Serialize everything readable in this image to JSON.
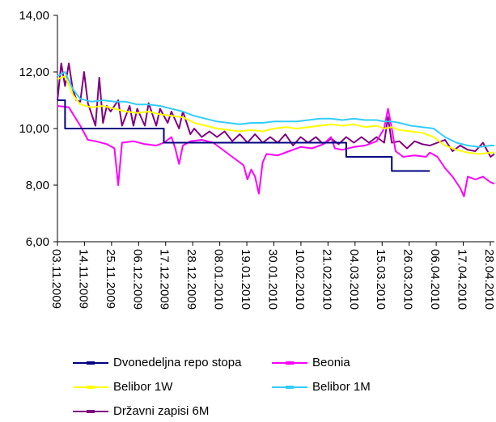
{
  "chart_data": {
    "type": "line",
    "title": "",
    "xlabel": "",
    "ylabel": "",
    "ylim": [
      6,
      14
    ],
    "yticks": [
      "6,00",
      "8,00",
      "10,00",
      "12,00",
      "14,00"
    ],
    "xticks": [
      "03.11.2009",
      "14.11.2009",
      "25.11.2009",
      "06.12.2009",
      "17.12.2009",
      "28.12.2009",
      "08.01.2010",
      "19.01.2010",
      "30.01.2010",
      "10.02.2010",
      "21.02.2010",
      "04.03.2010",
      "15.03.2010",
      "26.03.2010",
      "06.04.2010",
      "17.04.2010",
      "28.04.2010"
    ],
    "legend_position": "bottom",
    "grid": false,
    "series": [
      {
        "name": "Dvonedeljna repo stopa",
        "color": "#000080",
        "points": [
          [
            0,
            11.0
          ],
          [
            2,
            11.0
          ],
          [
            2,
            10.0
          ],
          [
            28,
            10.0
          ],
          [
            28,
            9.5
          ],
          [
            76,
            9.5
          ],
          [
            76,
            9.0
          ],
          [
            88,
            9.0
          ],
          [
            88,
            8.5
          ],
          [
            98,
            8.5
          ]
        ]
      },
      {
        "name": "Beonia",
        "color": "#ff00ff",
        "points": [
          [
            0,
            10.8
          ],
          [
            3,
            10.75
          ],
          [
            6,
            10.1
          ],
          [
            8,
            9.6
          ],
          [
            10,
            9.55
          ],
          [
            13,
            9.45
          ],
          [
            15,
            9.3
          ],
          [
            16,
            8.0
          ],
          [
            17,
            9.5
          ],
          [
            20,
            9.55
          ],
          [
            23,
            9.45
          ],
          [
            26,
            9.4
          ],
          [
            28,
            9.5
          ],
          [
            30,
            9.7
          ],
          [
            31,
            9.3
          ],
          [
            32,
            8.75
          ],
          [
            33,
            9.4
          ],
          [
            35,
            9.55
          ],
          [
            38,
            9.6
          ],
          [
            41,
            9.5
          ],
          [
            43,
            9.3
          ],
          [
            45,
            9.1
          ],
          [
            47,
            8.9
          ],
          [
            49,
            8.7
          ],
          [
            50,
            8.2
          ],
          [
            51,
            8.55
          ],
          [
            52,
            8.3
          ],
          [
            53,
            7.7
          ],
          [
            54,
            8.8
          ],
          [
            55,
            9.1
          ],
          [
            58,
            9.05
          ],
          [
            61,
            9.2
          ],
          [
            64,
            9.35
          ],
          [
            67,
            9.3
          ],
          [
            70,
            9.45
          ],
          [
            72,
            9.7
          ],
          [
            73,
            9.3
          ],
          [
            75,
            9.25
          ],
          [
            78,
            9.35
          ],
          [
            81,
            9.4
          ],
          [
            84,
            9.55
          ],
          [
            86,
            10.0
          ],
          [
            87,
            10.7
          ],
          [
            88,
            10.0
          ],
          [
            89,
            9.2
          ],
          [
            91,
            9.0
          ],
          [
            94,
            9.05
          ],
          [
            97,
            9.0
          ],
          [
            98,
            9.15
          ],
          [
            100,
            9.0
          ],
          [
            102,
            8.6
          ],
          [
            104,
            8.3
          ],
          [
            106,
            7.9
          ],
          [
            107,
            7.6
          ],
          [
            108,
            8.3
          ],
          [
            110,
            8.2
          ],
          [
            112,
            8.3
          ],
          [
            114,
            8.1
          ],
          [
            115,
            8.05
          ]
        ]
      },
      {
        "name": "Belibor 1W",
        "color": "#ffff00",
        "points": [
          [
            0,
            11.75
          ],
          [
            2,
            11.85
          ],
          [
            4,
            11.2
          ],
          [
            6,
            10.85
          ],
          [
            9,
            10.75
          ],
          [
            12,
            10.8
          ],
          [
            15,
            10.7
          ],
          [
            18,
            10.6
          ],
          [
            21,
            10.55
          ],
          [
            24,
            10.6
          ],
          [
            27,
            10.5
          ],
          [
            30,
            10.45
          ],
          [
            33,
            10.4
          ],
          [
            36,
            10.2
          ],
          [
            39,
            10.1
          ],
          [
            42,
            10.0
          ],
          [
            45,
            9.95
          ],
          [
            48,
            9.9
          ],
          [
            51,
            9.95
          ],
          [
            54,
            9.9
          ],
          [
            57,
            10.0
          ],
          [
            60,
            10.05
          ],
          [
            63,
            10.0
          ],
          [
            66,
            10.05
          ],
          [
            69,
            10.1
          ],
          [
            72,
            10.15
          ],
          [
            75,
            10.1
          ],
          [
            78,
            10.15
          ],
          [
            81,
            10.05
          ],
          [
            84,
            10.1
          ],
          [
            86,
            10.0
          ],
          [
            88,
            10.05
          ],
          [
            90,
            9.95
          ],
          [
            93,
            9.9
          ],
          [
            96,
            9.85
          ],
          [
            99,
            9.7
          ],
          [
            102,
            9.4
          ],
          [
            105,
            9.25
          ],
          [
            108,
            9.15
          ],
          [
            111,
            9.1
          ],
          [
            114,
            9.15
          ],
          [
            115,
            9.15
          ]
        ]
      },
      {
        "name": "Belibor 1M",
        "color": "#33ccff",
        "points": [
          [
            0,
            11.85
          ],
          [
            2,
            12.0
          ],
          [
            4,
            11.4
          ],
          [
            6,
            11.05
          ],
          [
            9,
            10.95
          ],
          [
            12,
            11.0
          ],
          [
            15,
            10.95
          ],
          [
            18,
            10.95
          ],
          [
            21,
            10.85
          ],
          [
            24,
            10.85
          ],
          [
            27,
            10.8
          ],
          [
            30,
            10.7
          ],
          [
            33,
            10.6
          ],
          [
            36,
            10.45
          ],
          [
            39,
            10.35
          ],
          [
            42,
            10.25
          ],
          [
            45,
            10.2
          ],
          [
            48,
            10.15
          ],
          [
            51,
            10.2
          ],
          [
            54,
            10.2
          ],
          [
            57,
            10.25
          ],
          [
            60,
            10.25
          ],
          [
            63,
            10.25
          ],
          [
            66,
            10.3
          ],
          [
            69,
            10.35
          ],
          [
            72,
            10.35
          ],
          [
            75,
            10.3
          ],
          [
            78,
            10.35
          ],
          [
            81,
            10.3
          ],
          [
            84,
            10.3
          ],
          [
            86,
            10.25
          ],
          [
            88,
            10.25
          ],
          [
            90,
            10.2
          ],
          [
            93,
            10.1
          ],
          [
            96,
            10.05
          ],
          [
            99,
            10.0
          ],
          [
            102,
            9.7
          ],
          [
            105,
            9.5
          ],
          [
            108,
            9.4
          ],
          [
            111,
            9.35
          ],
          [
            114,
            9.4
          ],
          [
            115,
            9.4
          ]
        ]
      },
      {
        "name": "Državni zapisi 6M",
        "color": "#800080",
        "points": [
          [
            0,
            11.0
          ],
          [
            1,
            12.3
          ],
          [
            2,
            11.5
          ],
          [
            3,
            12.3
          ],
          [
            4,
            11.4
          ],
          [
            5,
            11.0
          ],
          [
            6,
            10.95
          ],
          [
            7,
            12.0
          ],
          [
            8,
            10.9
          ],
          [
            10,
            10.1
          ],
          [
            11,
            11.8
          ],
          [
            12,
            10.2
          ],
          [
            13,
            10.8
          ],
          [
            14,
            10.6
          ],
          [
            16,
            11.0
          ],
          [
            17,
            10.1
          ],
          [
            19,
            10.8
          ],
          [
            20,
            10.1
          ],
          [
            21,
            10.7
          ],
          [
            23,
            10.1
          ],
          [
            24,
            10.9
          ],
          [
            26,
            10.1
          ],
          [
            27,
            10.7
          ],
          [
            29,
            10.2
          ],
          [
            30,
            10.6
          ],
          [
            32,
            10.0
          ],
          [
            33,
            10.6
          ],
          [
            35,
            9.8
          ],
          [
            36,
            10.0
          ],
          [
            38,
            9.7
          ],
          [
            40,
            9.9
          ],
          [
            42,
            9.7
          ],
          [
            44,
            9.9
          ],
          [
            46,
            9.55
          ],
          [
            48,
            9.8
          ],
          [
            50,
            9.5
          ],
          [
            52,
            9.8
          ],
          [
            54,
            9.5
          ],
          [
            56,
            9.7
          ],
          [
            58,
            9.5
          ],
          [
            60,
            9.8
          ],
          [
            62,
            9.4
          ],
          [
            64,
            9.7
          ],
          [
            66,
            9.5
          ],
          [
            68,
            9.7
          ],
          [
            70,
            9.45
          ],
          [
            72,
            9.65
          ],
          [
            74,
            9.45
          ],
          [
            76,
            9.7
          ],
          [
            78,
            9.5
          ],
          [
            80,
            9.7
          ],
          [
            82,
            9.5
          ],
          [
            84,
            9.7
          ],
          [
            86,
            9.5
          ],
          [
            87,
            10.4
          ],
          [
            88,
            9.5
          ],
          [
            90,
            9.55
          ],
          [
            92,
            9.3
          ],
          [
            94,
            9.55
          ],
          [
            96,
            9.45
          ],
          [
            98,
            9.4
          ],
          [
            100,
            9.5
          ],
          [
            102,
            9.6
          ],
          [
            104,
            9.2
          ],
          [
            106,
            9.4
          ],
          [
            108,
            9.25
          ],
          [
            110,
            9.2
          ],
          [
            112,
            9.5
          ],
          [
            114,
            9.0
          ],
          [
            115,
            9.1
          ]
        ]
      }
    ]
  }
}
